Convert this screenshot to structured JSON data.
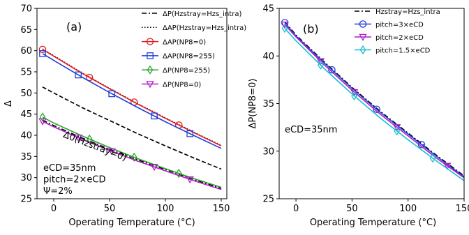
{
  "chart_data": [
    {
      "type": "line",
      "panel_label": "(a)",
      "xlabel": "Operating Temperature (°C)",
      "ylabel": "Δ",
      "xlim": [
        -15,
        155
      ],
      "ylim": [
        25,
        70
      ],
      "xticks": [
        0,
        50,
        100,
        150
      ],
      "yticks": [
        25,
        30,
        35,
        40,
        45,
        50,
        55,
        60,
        65,
        70
      ],
      "grid": false,
      "legend_position": "top-right",
      "annotations": [
        "eCD=35nm",
        "pitch=2×eCD",
        "Ψ=2%"
      ],
      "inline_label": "Δ0(Hzstray=0)",
      "series": [
        {
          "name": "ΔP(Hzstray=Hzs_intra)",
          "color": "#000000",
          "style": "dashdot",
          "marker": "none",
          "x": [
            -10,
            0,
            25,
            50,
            75,
            100,
            125,
            150
          ],
          "y": [
            43.6,
            42.3,
            39.4,
            36.7,
            34.2,
            31.9,
            29.6,
            27.4
          ]
        },
        {
          "name": "ΔAP(Hzstray=Hzs_intra)",
          "color": "#000000",
          "style": "dotted",
          "marker": "none",
          "x": [
            -10,
            0,
            25,
            50,
            75,
            100,
            125,
            150
          ],
          "y": [
            60.4,
            58.8,
            54.8,
            51.1,
            47.5,
            44.1,
            40.8,
            37.6
          ]
        },
        {
          "name": "ΔAP(NP8=0)",
          "color": "#e41a1c",
          "style": "solid",
          "marker": "circle",
          "x": [
            -10,
            0,
            25,
            50,
            75,
            100,
            125,
            150
          ],
          "y": [
            60.3,
            58.7,
            54.7,
            51.0,
            47.4,
            44.0,
            40.7,
            37.5
          ],
          "marker_x": [
            -10,
            32,
            72,
            112
          ]
        },
        {
          "name": "ΔAP(NP8=255)",
          "color": "#1f3fd9",
          "style": "solid",
          "marker": "square",
          "x": [
            -10,
            0,
            25,
            50,
            75,
            100,
            125,
            150
          ],
          "y": [
            59.3,
            57.7,
            53.8,
            50.1,
            46.6,
            43.2,
            40.0,
            36.9
          ],
          "marker_x": [
            -10,
            22,
            52,
            90,
            122
          ]
        },
        {
          "name": "ΔP(NP8=255)",
          "color": "#2ca02c",
          "style": "solid",
          "marker": "diamond",
          "x": [
            -10,
            0,
            25,
            50,
            75,
            100,
            125,
            150
          ],
          "y": [
            44.3,
            42.9,
            39.9,
            37.1,
            34.5,
            32.1,
            29.8,
            27.7
          ],
          "marker_x": [
            -10,
            32,
            72,
            112
          ]
        },
        {
          "name": "ΔP(NP8=0)",
          "color": "#b01fc9",
          "style": "solid",
          "marker": "triangle-down",
          "x": [
            -10,
            0,
            25,
            50,
            75,
            100,
            125,
            150
          ],
          "y": [
            43.3,
            42.0,
            39.1,
            36.4,
            33.9,
            31.6,
            29.3,
            27.2
          ],
          "marker_x": [
            -10,
            22,
            52,
            90,
            122
          ]
        },
        {
          "name": "Δ0(Hzstray=0)",
          "color": "#000000",
          "style": "dashed",
          "marker": "none",
          "x": [
            -10,
            0,
            25,
            50,
            75,
            100,
            125,
            150
          ],
          "y": [
            51.4,
            50.0,
            46.6,
            43.5,
            40.4,
            37.5,
            34.7,
            32.0
          ]
        }
      ]
    },
    {
      "type": "line",
      "panel_label": "(b)",
      "xlabel": "Operating Temperature (°C)",
      "ylabel": "ΔP(NP8=0)",
      "xlim": [
        -15,
        150
      ],
      "ylim": [
        25,
        45
      ],
      "xticks": [
        0,
        50,
        100,
        150
      ],
      "yticks": [
        25,
        30,
        35,
        40,
        45
      ],
      "grid": false,
      "legend_position": "top-right",
      "annotations": [
        "eCD=35nm"
      ],
      "series": [
        {
          "name": "Hzstray=Hzs_intra",
          "color": "#000000",
          "style": "dashdot",
          "marker": "none",
          "x": [
            -10,
            0,
            25,
            50,
            75,
            100,
            125,
            150
          ],
          "y": [
            43.6,
            42.2,
            39.4,
            36.7,
            34.2,
            31.9,
            29.6,
            27.4
          ]
        },
        {
          "name": "pitch=3×eCD",
          "color": "#1f3fd9",
          "style": "solid",
          "marker": "circle",
          "x": [
            -10,
            0,
            25,
            50,
            75,
            100,
            125,
            150
          ],
          "y": [
            43.5,
            42.1,
            39.3,
            36.6,
            34.1,
            31.8,
            29.5,
            27.3
          ],
          "marker_x": [
            -10,
            32,
            72,
            112
          ]
        },
        {
          "name": "pitch=2×eCD",
          "color": "#b01fc9",
          "style": "solid",
          "marker": "triangle-down",
          "x": [
            -10,
            0,
            25,
            50,
            75,
            100,
            125,
            150
          ],
          "y": [
            43.3,
            42.0,
            39.1,
            36.4,
            33.9,
            31.6,
            29.3,
            27.2
          ],
          "marker_x": [
            -10,
            22,
            52,
            90,
            135
          ]
        },
        {
          "name": "pitch=1.5×eCD",
          "color": "#17bfcf",
          "style": "solid",
          "marker": "diamond",
          "x": [
            -10,
            0,
            25,
            50,
            75,
            100,
            125,
            150
          ],
          "y": [
            42.9,
            41.6,
            38.7,
            36.0,
            33.5,
            31.2,
            29.0,
            26.9
          ],
          "marker_x": [
            -10,
            22,
            52,
            90,
            122
          ]
        }
      ]
    }
  ]
}
